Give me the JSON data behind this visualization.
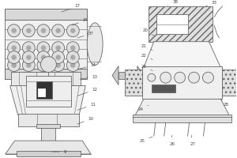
{
  "bg_color": "#ffffff",
  "line_color": "#666666",
  "label_color": "#444444",
  "figsize": [
    3.0,
    2.0
  ],
  "dpi": 100,
  "lw": 0.6,
  "label_fs": 4.0
}
